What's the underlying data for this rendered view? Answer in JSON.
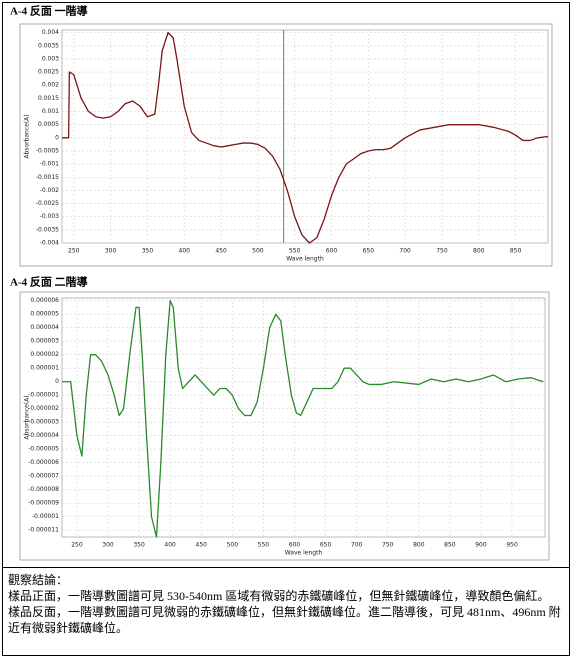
{
  "chart_data": [
    {
      "type": "line",
      "title": "A-4 反面 一階導",
      "x_label": "Wave length",
      "y_label": "Absorbance(A)",
      "color": "#7a1515",
      "vline": 535,
      "vline_color": "#3fa03f",
      "grid": true,
      "xlim": [
        234,
        894
      ],
      "ylim": [
        -0.004,
        0.0041
      ],
      "xticks": [
        250,
        300,
        350,
        400,
        450,
        500,
        550,
        600,
        650,
        700,
        750,
        800,
        850
      ],
      "yticks": [
        0.004,
        0.0035,
        0.003,
        0.0025,
        0.002,
        0.0015,
        0.001,
        0.0005,
        0,
        -0.0005,
        -0.001,
        -0.0015,
        -0.002,
        -0.0025,
        -0.003,
        -0.0035,
        -0.004
      ],
      "x": [
        234,
        243,
        244,
        250,
        260,
        270,
        280,
        290,
        300,
        310,
        320,
        330,
        340,
        350,
        360,
        365,
        370,
        378,
        385,
        390,
        400,
        410,
        420,
        430,
        440,
        450,
        460,
        470,
        480,
        490,
        500,
        510,
        520,
        530,
        540,
        550,
        560,
        570,
        580,
        590,
        600,
        610,
        620,
        630,
        640,
        650,
        660,
        670,
        680,
        690,
        700,
        720,
        740,
        760,
        780,
        800,
        820,
        840,
        850,
        860,
        870,
        880,
        894
      ],
      "values": [
        0,
        0,
        0.0025,
        0.0024,
        0.0015,
        0.001,
        0.0008,
        0.00075,
        0.0008,
        0.001,
        0.0013,
        0.0014,
        0.0012,
        0.0008,
        0.0009,
        0.002,
        0.0033,
        0.004,
        0.0038,
        0.003,
        0.0012,
        0.0002,
        -0.0001,
        -0.0002,
        -0.0003,
        -0.00035,
        -0.0003,
        -0.00025,
        -0.0002,
        -0.0002,
        -0.00025,
        -0.0004,
        -0.0007,
        -0.0012,
        -0.002,
        -0.003,
        -0.0037,
        -0.004,
        -0.0038,
        -0.0031,
        -0.0022,
        -0.0015,
        -0.001,
        -0.0008,
        -0.0006,
        -0.0005,
        -0.00045,
        -0.00045,
        -0.0004,
        -0.0002,
        0,
        0.0003,
        0.0004,
        0.0005,
        0.0005,
        0.0005,
        0.0004,
        0.00025,
        0.0001,
        -0.0001,
        -0.0001,
        0,
        5e-05
      ]
    },
    {
      "type": "line",
      "title": "A-4 反面 二階導",
      "x_label": "Wave length",
      "y_label": "Absorbance(A)",
      "color": "#2a8a2a",
      "grid": true,
      "xlim": [
        226,
        1003
      ],
      "ylim": [
        -1.15e-05,
        6.2e-06
      ],
      "xticks": [
        250,
        300,
        350,
        400,
        450,
        500,
        550,
        600,
        650,
        700,
        750,
        800,
        850,
        900,
        950
      ],
      "yticks": [
        6e-06,
        5e-06,
        4e-06,
        3e-06,
        2e-06,
        1e-06,
        0,
        -1e-06,
        -2e-06,
        -3e-06,
        -4e-06,
        -5e-06,
        -6e-06,
        -7e-06,
        -8e-06,
        -9e-06,
        -1e-05,
        -1.1e-05
      ],
      "x": [
        226,
        240,
        245,
        250,
        258,
        265,
        272,
        280,
        290,
        300,
        310,
        318,
        325,
        335,
        345,
        350,
        355,
        362,
        370,
        378,
        385,
        393,
        400,
        405,
        413,
        420,
        430,
        440,
        450,
        460,
        470,
        480,
        490,
        500,
        510,
        520,
        530,
        540,
        550,
        560,
        570,
        578,
        585,
        595,
        603,
        610,
        620,
        630,
        640,
        650,
        660,
        670,
        680,
        690,
        700,
        710,
        720,
        740,
        760,
        800,
        820,
        840,
        860,
        880,
        900,
        920,
        940,
        960,
        980,
        1000
      ],
      "values": [
        0,
        0,
        -2e-06,
        -4e-06,
        -5.5e-06,
        -1e-06,
        2e-06,
        2e-06,
        1.5e-06,
        5e-07,
        -1e-06,
        -2.5e-06,
        -2e-06,
        2e-06,
        5.5e-06,
        5.5e-06,
        2e-06,
        -4e-06,
        -1e-05,
        -1.15e-05,
        -6e-06,
        2e-06,
        6e-06,
        5.5e-06,
        1e-06,
        -5e-07,
        0,
        5e-07,
        0,
        -5e-07,
        -1e-06,
        -5e-07,
        -5e-07,
        -1e-06,
        -2e-06,
        -2.5e-06,
        -2.5e-06,
        -1.5e-06,
        1e-06,
        4e-06,
        5e-06,
        4.5e-06,
        2e-06,
        -1e-06,
        -2.3e-06,
        -2.5e-06,
        -1.5e-06,
        -5e-07,
        -5e-07,
        -5e-07,
        -5e-07,
        0,
        1e-06,
        1e-06,
        5e-07,
        0,
        -2e-07,
        -2e-07,
        0,
        -2e-07,
        2e-07,
        0,
        2e-07,
        0,
        2e-07,
        5e-07,
        0,
        2e-07,
        3e-07,
        0
      ]
    }
  ],
  "conclusion": {
    "heading": "觀察結論：",
    "paragraphs": [
      "樣品正面，一階導數圖譜可見 530-540nm 區域有微弱的赤鐵礦峰位，但無針鐵礦峰位，導致顏色偏紅。",
      "樣品反面，一階導數圖譜可見微弱的赤鐵礦峰位，但無針鐵礦峰位。進二階導後，可見 481nm、496nm 附近有微弱針鐵礦峰位。"
    ]
  }
}
